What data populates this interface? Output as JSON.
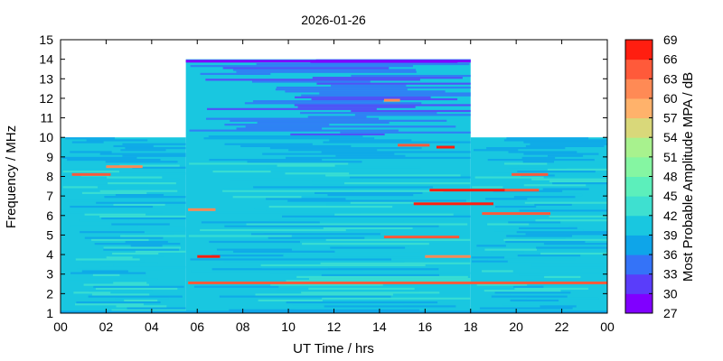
{
  "chart_data": {
    "type": "heatmap",
    "title": "2026-01-26",
    "xlabel": "UT Time / hrs",
    "ylabel": "Frequency / MHz",
    "colorbar_label": "Most Probable Amplitude MPA / dB",
    "xlim": [
      0,
      24
    ],
    "ylim": [
      1,
      15
    ],
    "x_tick_labels": [
      "00",
      "02",
      "04",
      "06",
      "08",
      "10",
      "12",
      "14",
      "16",
      "18",
      "20",
      "22",
      "00"
    ],
    "y_tick_labels": [
      "1",
      "2",
      "3",
      "4",
      "5",
      "6",
      "7",
      "8",
      "9",
      "10",
      "11",
      "12",
      "13",
      "14",
      "15"
    ],
    "colorbar_range": [
      27,
      69
    ],
    "colorbar_ticks": [
      "27",
      "30",
      "33",
      "36",
      "39",
      "42",
      "45",
      "48",
      "51",
      "54",
      "57",
      "60",
      "63",
      "66",
      "69"
    ],
    "colorbar_colors": [
      "#8000ff",
      "#5a3dfa",
      "#3473f8",
      "#0ea5e9",
      "#19c7e0",
      "#3ee0d0",
      "#5cefbb",
      "#85f6a2",
      "#a8f28e",
      "#d9d87a",
      "#ffb26b",
      "#ff8a55",
      "#ff5a3a",
      "#ff1e10"
    ],
    "coverage": [
      {
        "x": [
          0,
          5.5
        ],
        "y": [
          1,
          10
        ]
      },
      {
        "x": [
          5.5,
          18
        ],
        "y": [
          1,
          14
        ]
      },
      {
        "x": [
          18,
          24
        ],
        "y": [
          1,
          10
        ]
      }
    ],
    "background_level_db": 40,
    "features": [
      {
        "x": [
          0.5,
          2.2
        ],
        "y": 8.1,
        "db": 63
      },
      {
        "x": [
          2.0,
          3.6
        ],
        "y": 8.5,
        "db": 60
      },
      {
        "x": [
          5.6,
          6.8
        ],
        "y": 6.3,
        "db": 60
      },
      {
        "x": [
          6.0,
          7.0
        ],
        "y": 3.9,
        "db": 66
      },
      {
        "x": [
          5.6,
          24.0
        ],
        "y": 2.55,
        "db": 63
      },
      {
        "x": [
          14.8,
          16.2
        ],
        "y": 9.6,
        "db": 63
      },
      {
        "x": [
          16.5,
          17.3
        ],
        "y": 9.5,
        "db": 66
      },
      {
        "x": [
          16.2,
          19.5
        ],
        "y": 7.3,
        "db": 66
      },
      {
        "x": [
          19.5,
          21.0
        ],
        "y": 7.3,
        "db": 63
      },
      {
        "x": [
          15.5,
          19.0
        ],
        "y": 6.6,
        "db": 66
      },
      {
        "x": [
          18.5,
          21.5
        ],
        "y": 6.1,
        "db": 63
      },
      {
        "x": [
          14.2,
          17.5
        ],
        "y": 4.9,
        "db": 63
      },
      {
        "x": [
          16.0,
          18.0
        ],
        "y": 3.9,
        "db": 60
      },
      {
        "x": [
          19.8,
          21.4
        ],
        "y": 8.1,
        "db": 63
      },
      {
        "x": [
          14.2,
          14.9
        ],
        "y": 11.9,
        "db": 60
      },
      {
        "x": [
          5.5,
          18.0
        ],
        "y": 13.9,
        "db": 27
      },
      {
        "x": [
          0.0,
          24.0
        ],
        "y": 1.05,
        "db": 36
      }
    ]
  }
}
